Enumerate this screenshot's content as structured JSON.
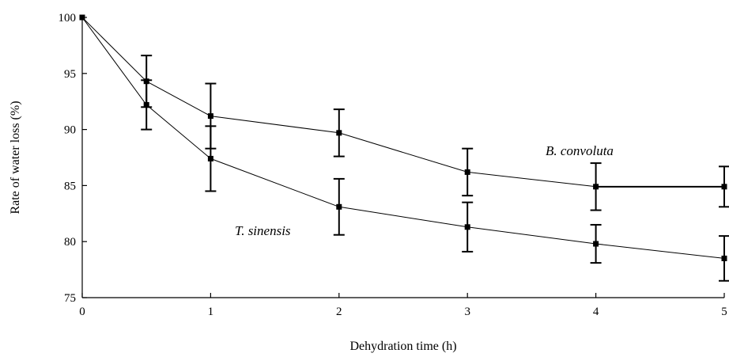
{
  "chart_data": {
    "type": "line",
    "title": "",
    "xlabel": "Dehydration time (h)",
    "ylabel": "Rate of water loss (%)",
    "xlim": [
      0,
      5
    ],
    "ylim": [
      75,
      100
    ],
    "x_ticks": [
      0,
      1,
      2,
      3,
      4,
      5
    ],
    "y_ticks": [
      75,
      80,
      85,
      90,
      95,
      100
    ],
    "grid": false,
    "legend": "none",
    "colors": {
      "line": "#000000",
      "marker": "#000000",
      "axis": "#000000"
    },
    "series": [
      {
        "name": "B. convoluta",
        "x": [
          0,
          0.5,
          1,
          2,
          3,
          4,
          5
        ],
        "y": [
          100,
          94.3,
          91.2,
          89.7,
          86.2,
          84.9,
          84.9
        ],
        "error": [
          0,
          2.3,
          2.9,
          2.1,
          2.1,
          2.1,
          1.8
        ]
      },
      {
        "name": "T. sinensis",
        "x": [
          0,
          0.5,
          1,
          2,
          3,
          4,
          5
        ],
        "y": [
          100,
          92.2,
          87.4,
          83.1,
          81.3,
          79.8,
          78.5
        ],
        "error": [
          0,
          2.2,
          2.9,
          2.5,
          2.2,
          1.7,
          2.0
        ]
      }
    ]
  }
}
